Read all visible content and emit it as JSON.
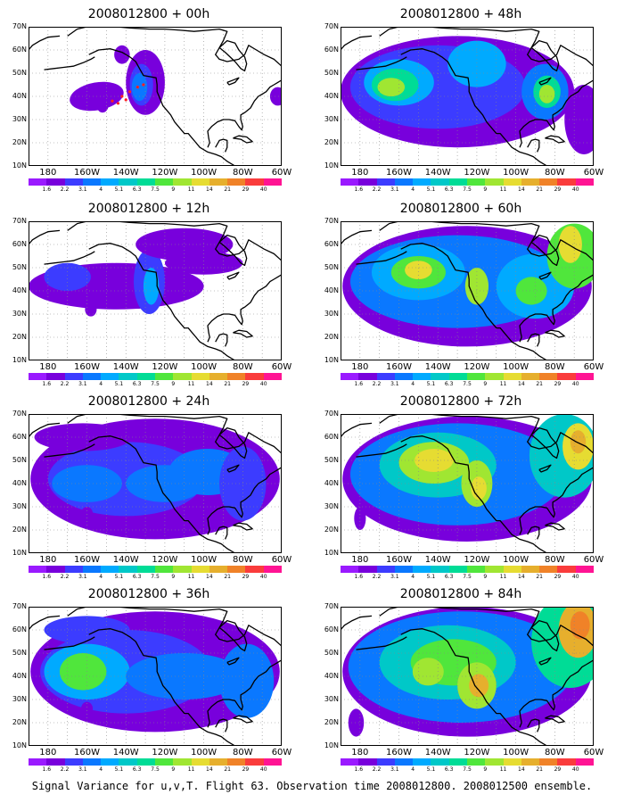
{
  "figure": {
    "caption": "Signal Variance for u,v,T. Flight 63. Observation time 2008012800. 2008012500 ensemble.",
    "latitude_labels": [
      "70N",
      "60N",
      "50N",
      "40N",
      "30N",
      "20N",
      "10N"
    ],
    "longitude_labels": [
      "180",
      "160W",
      "140W",
      "120W",
      "100W",
      "80W",
      "60W"
    ],
    "colorbar": {
      "levels": [
        "1.6",
        "2.2",
        "3.1",
        "4",
        "5.1",
        "6.3",
        "7.5",
        "9",
        "11",
        "14",
        "21",
        "29",
        "40"
      ],
      "colors": [
        "#9a1aff",
        "#7800dc",
        "#3c3cff",
        "#0a78ff",
        "#00aaff",
        "#00c8c8",
        "#00dc96",
        "#50e63c",
        "#a0e632",
        "#e6dc32",
        "#e6af2d",
        "#f08228",
        "#fa3c3c",
        "#ff1493"
      ]
    },
    "panels": [
      {
        "title": "2008012800 + 00h",
        "lead_hours": 0
      },
      {
        "title": "2008012800 + 48h",
        "lead_hours": 48
      },
      {
        "title": "2008012800 + 12h",
        "lead_hours": 12
      },
      {
        "title": "2008012800 + 60h",
        "lead_hours": 60
      },
      {
        "title": "2008012800 + 24h",
        "lead_hours": 24
      },
      {
        "title": "2008012800 + 72h",
        "lead_hours": 72
      },
      {
        "title": "2008012800 + 36h",
        "lead_hours": 36
      },
      {
        "title": "2008012800 + 84h",
        "lead_hours": 84
      }
    ]
  }
}
